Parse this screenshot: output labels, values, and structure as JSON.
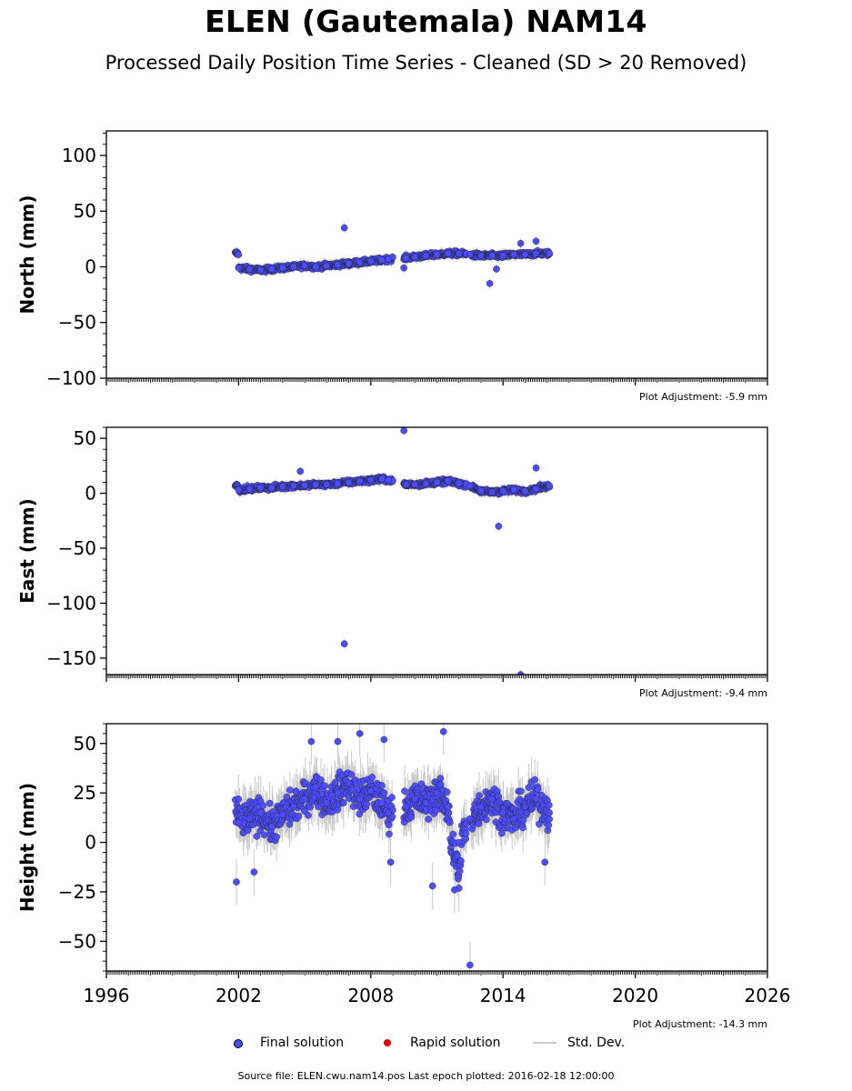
{
  "header": {
    "title": "ELEN (Gautemala) NAM14",
    "subtitle": "Processed Daily Position Time Series - Cleaned (SD > 20 Removed)"
  },
  "legend": {
    "final": "Final solution",
    "rapid": "Rapid solution",
    "stddev": "Std. Dev."
  },
  "footer": {
    "source": "Source file: ELEN.cwu.nam14.pos  Last epoch plotted: 2016-02-18 12:00:00"
  },
  "colors": {
    "final_fill": "#4c4cff",
    "rapid_fill": "#e00000",
    "errorbar": "#c8c8c8"
  },
  "chart_data": [
    {
      "type": "scatter",
      "ylabel": "North (mm)",
      "xlim": [
        1996,
        2026
      ],
      "ylim": [
        -100,
        122
      ],
      "xticks": [
        1996,
        2002,
        2008,
        2014,
        2020,
        2026
      ],
      "yticks": [
        -100,
        -50,
        0,
        50,
        100
      ],
      "adjustment": "Plot Adjustment: -5.9 mm",
      "series": [
        {
          "x": [
            2002.0,
            2002.5,
            2003.0,
            2003.5,
            2004.0,
            2004.5,
            2005.0,
            2005.5,
            2006.0,
            2006.5,
            2007.0,
            2007.5,
            2008.0,
            2008.5,
            2008.8,
            2009.6,
            2010.0,
            2010.5,
            2011.0,
            2011.5,
            2012.0,
            2012.5,
            2013.0,
            2013.5,
            2014.0,
            2014.5,
            2015.0,
            2015.5,
            2016.1
          ],
          "y": [
            -1,
            -2,
            -3,
            -2,
            -1,
            0,
            1,
            0,
            1,
            2,
            3,
            4,
            5,
            6,
            7,
            8,
            9,
            10,
            11,
            12,
            12,
            11,
            10,
            10,
            10,
            11,
            11,
            12,
            12
          ]
        }
      ],
      "outliers": {
        "x": [
          2006.8,
          2009.5,
          2013.4,
          2013.7,
          2014.8,
          2015.5
        ],
        "y": [
          35,
          -1,
          -15,
          -2,
          21,
          23
        ]
      }
    },
    {
      "type": "scatter",
      "ylabel": "East (mm)",
      "xlim": [
        1996,
        2026
      ],
      "ylim": [
        -165,
        60
      ],
      "xticks": [
        1996,
        2002,
        2008,
        2014,
        2020,
        2026
      ],
      "yticks": [
        -150,
        -100,
        -50,
        0,
        50
      ],
      "adjustment": "Plot Adjustment: -9.4 mm",
      "series": [
        {
          "x": [
            2002.0,
            2002.5,
            2003.0,
            2003.5,
            2004.0,
            2004.5,
            2005.0,
            2005.5,
            2006.0,
            2006.5,
            2007.0,
            2007.5,
            2008.0,
            2008.5,
            2008.8,
            2009.6,
            2010.0,
            2010.5,
            2011.0,
            2011.5,
            2012.0,
            2012.5,
            2013.0,
            2013.5,
            2014.0,
            2014.5,
            2015.0,
            2015.5,
            2016.1
          ],
          "y": [
            3,
            4,
            5,
            5,
            6,
            7,
            7,
            8,
            8,
            9,
            10,
            11,
            12,
            13,
            12,
            8,
            8,
            9,
            10,
            11,
            9,
            7,
            2,
            1,
            2,
            3,
            2,
            4,
            7
          ]
        }
      ],
      "outliers": {
        "x": [
          2004.8,
          2006.8,
          2009.5,
          2013.8,
          2014.8,
          2015.5
        ],
        "y": [
          20,
          -137,
          57,
          -30,
          -165,
          23
        ]
      }
    },
    {
      "type": "scatter",
      "ylabel": "Height (mm)",
      "xlim": [
        1996,
        2026
      ],
      "ylim": [
        -65,
        60
      ],
      "xticks": [
        1996,
        2002,
        2008,
        2014,
        2020,
        2026
      ],
      "yticks": [
        -50,
        -25,
        0,
        25,
        50
      ],
      "xticklabels": [
        "1996",
        "2002",
        "2008",
        "2014",
        "2020",
        "2026"
      ],
      "adjustment": "Plot Adjustment: -14.3 mm",
      "series": [
        {
          "x": [
            2002.0,
            2002.5,
            2003.0,
            2003.5,
            2004.0,
            2004.5,
            2005.0,
            2005.5,
            2006.0,
            2006.5,
            2007.0,
            2007.5,
            2008.0,
            2008.5,
            2008.8,
            2009.6,
            2010.0,
            2010.5,
            2011.0,
            2011.5,
            2012.0,
            2012.5,
            2013.0,
            2013.5,
            2014.0,
            2014.5,
            2015.0,
            2015.5,
            2016.1
          ],
          "y": [
            10,
            12,
            15,
            8,
            14,
            18,
            22,
            28,
            20,
            25,
            30,
            22,
            26,
            20,
            15,
            18,
            22,
            20,
            25,
            18,
            0,
            12,
            18,
            22,
            15,
            12,
            18,
            22,
            15
          ]
        }
      ],
      "outliers": {
        "x": [
          2001.9,
          2002.7,
          2005.3,
          2006.5,
          2007.5,
          2008.6,
          2008.9,
          2010.8,
          2011.3,
          2011.8,
          2012.5,
          2015.9
        ],
        "y": [
          -20,
          -15,
          51,
          51,
          55,
          52,
          -10,
          -22,
          56,
          -24,
          -62,
          -10
        ]
      }
    }
  ]
}
